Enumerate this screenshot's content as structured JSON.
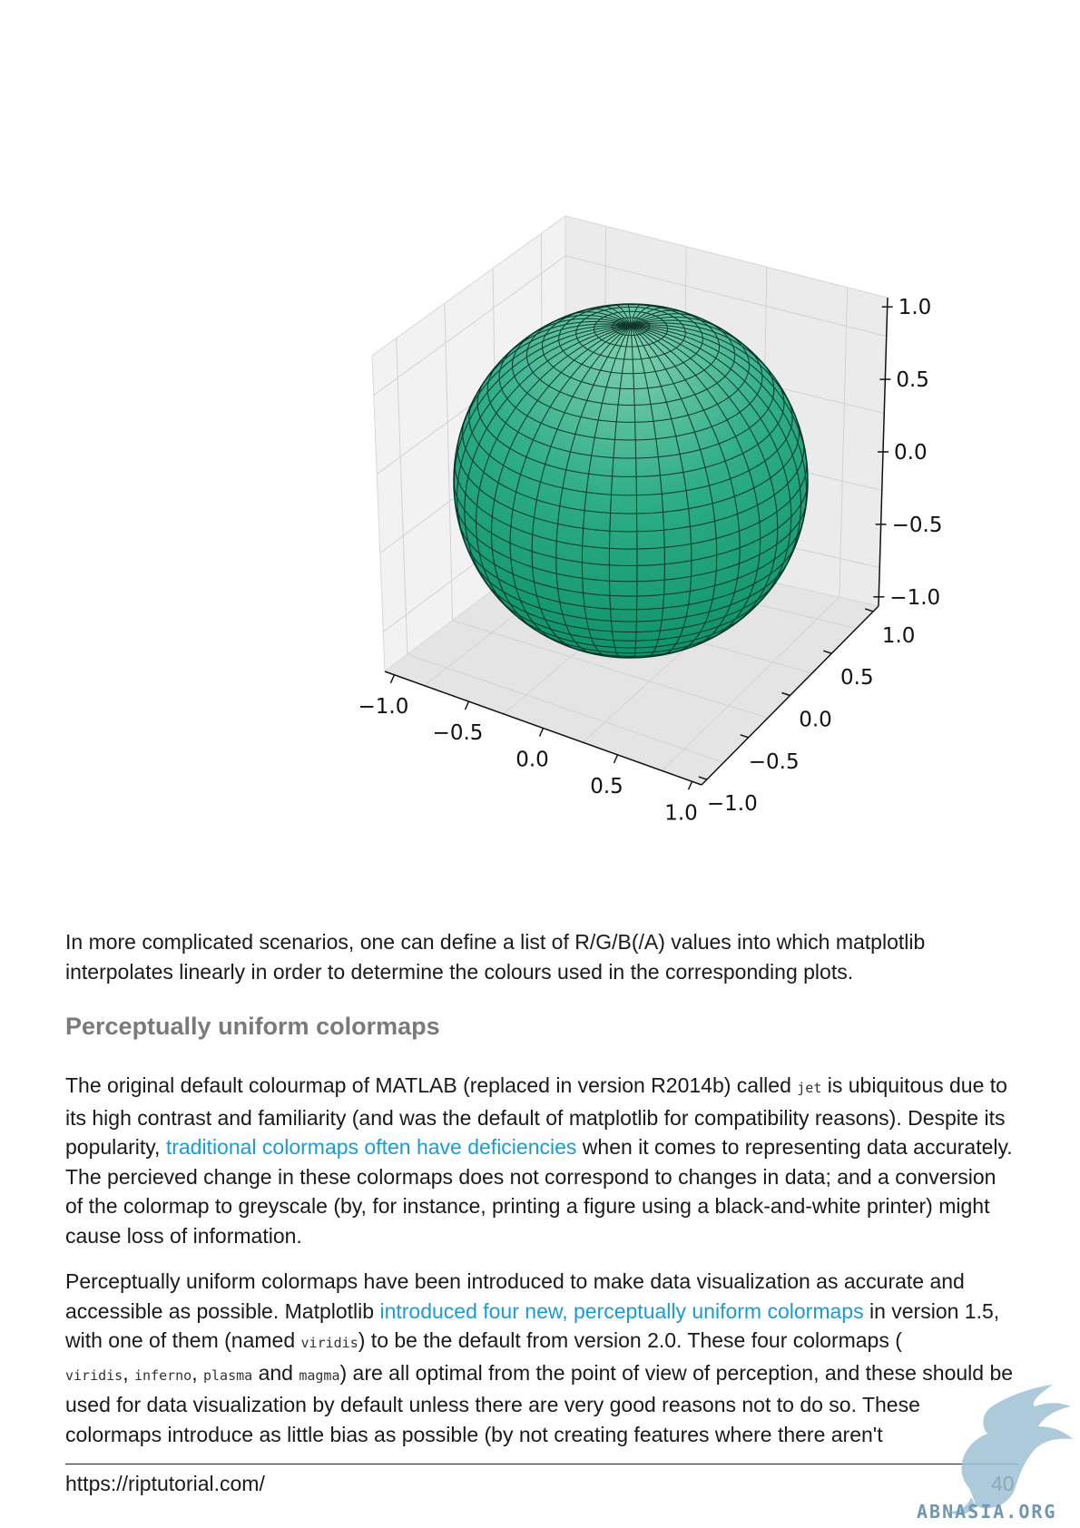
{
  "chart_data": {
    "type": "surface3d",
    "surface": "unit sphere",
    "colormap_color": "#0f9e7a",
    "x_ticks": [
      "−1.0",
      "−0.5",
      "0.0",
      "0.5",
      "1.0"
    ],
    "y_ticks": [
      "−1.0",
      "−0.5",
      "0.0",
      "0.5",
      "1.0"
    ],
    "z_ticks": [
      "1.0",
      "0.5",
      "0.0",
      "−0.5",
      "−1.0"
    ],
    "xlim": [
      -1,
      1
    ],
    "ylim": [
      -1,
      1
    ],
    "zlim": [
      -1,
      1
    ]
  },
  "p1": "In more complicated scenarios, one can define a list of R/G/B(/A) values into which matplotlib interpolates linearly in order to determine the colours used in the corresponding plots.",
  "heading": "Perceptually uniform colormaps",
  "p2": {
    "t1": "The original default colourmap of MATLAB (replaced in version R2014b) called ",
    "c1": "jet",
    "t2": " is ubiquitous due to its high contrast and familiarity (and was the default of matplotlib for compatibility reasons). Despite its popularity, ",
    "link": "traditional colormaps often have deficiencies",
    "t3": " when it comes to representing data accurately. The percieved change in these colormaps does not correspond to changes in data; and a conversion of the colormap to greyscale (by, for instance, printing a figure using a black-and-white printer) might cause loss of information."
  },
  "p3": {
    "t1": "Perceptually uniform colormaps have been introduced to make data visualization as accurate and accessible as possible. Matplotlib ",
    "link": "introduced four new, perceptually uniform colormaps",
    "t2": " in version 1.5, with one of them (named ",
    "c1": "viridis",
    "t3": ") to be the default from version 2.0. These four colormaps (",
    "c2": "viridis",
    "s1": ", ",
    "c3": "inferno",
    "s2": ", ",
    "c4": "plasma",
    "t4": " and ",
    "c5": "magma",
    "t5": ") are all optimal from the point of view of perception, and these should be used for data visualization by default unless there are very good reasons not to do so. These colormaps introduce as little bias as possible (by not creating features where there aren't"
  },
  "footer": {
    "url": "https://riptutorial.com/",
    "page": "40"
  },
  "watermark": "ABNASIA.ORG",
  "colors": {
    "link": "#1a9bd7",
    "heading": "#7a7a7a"
  }
}
